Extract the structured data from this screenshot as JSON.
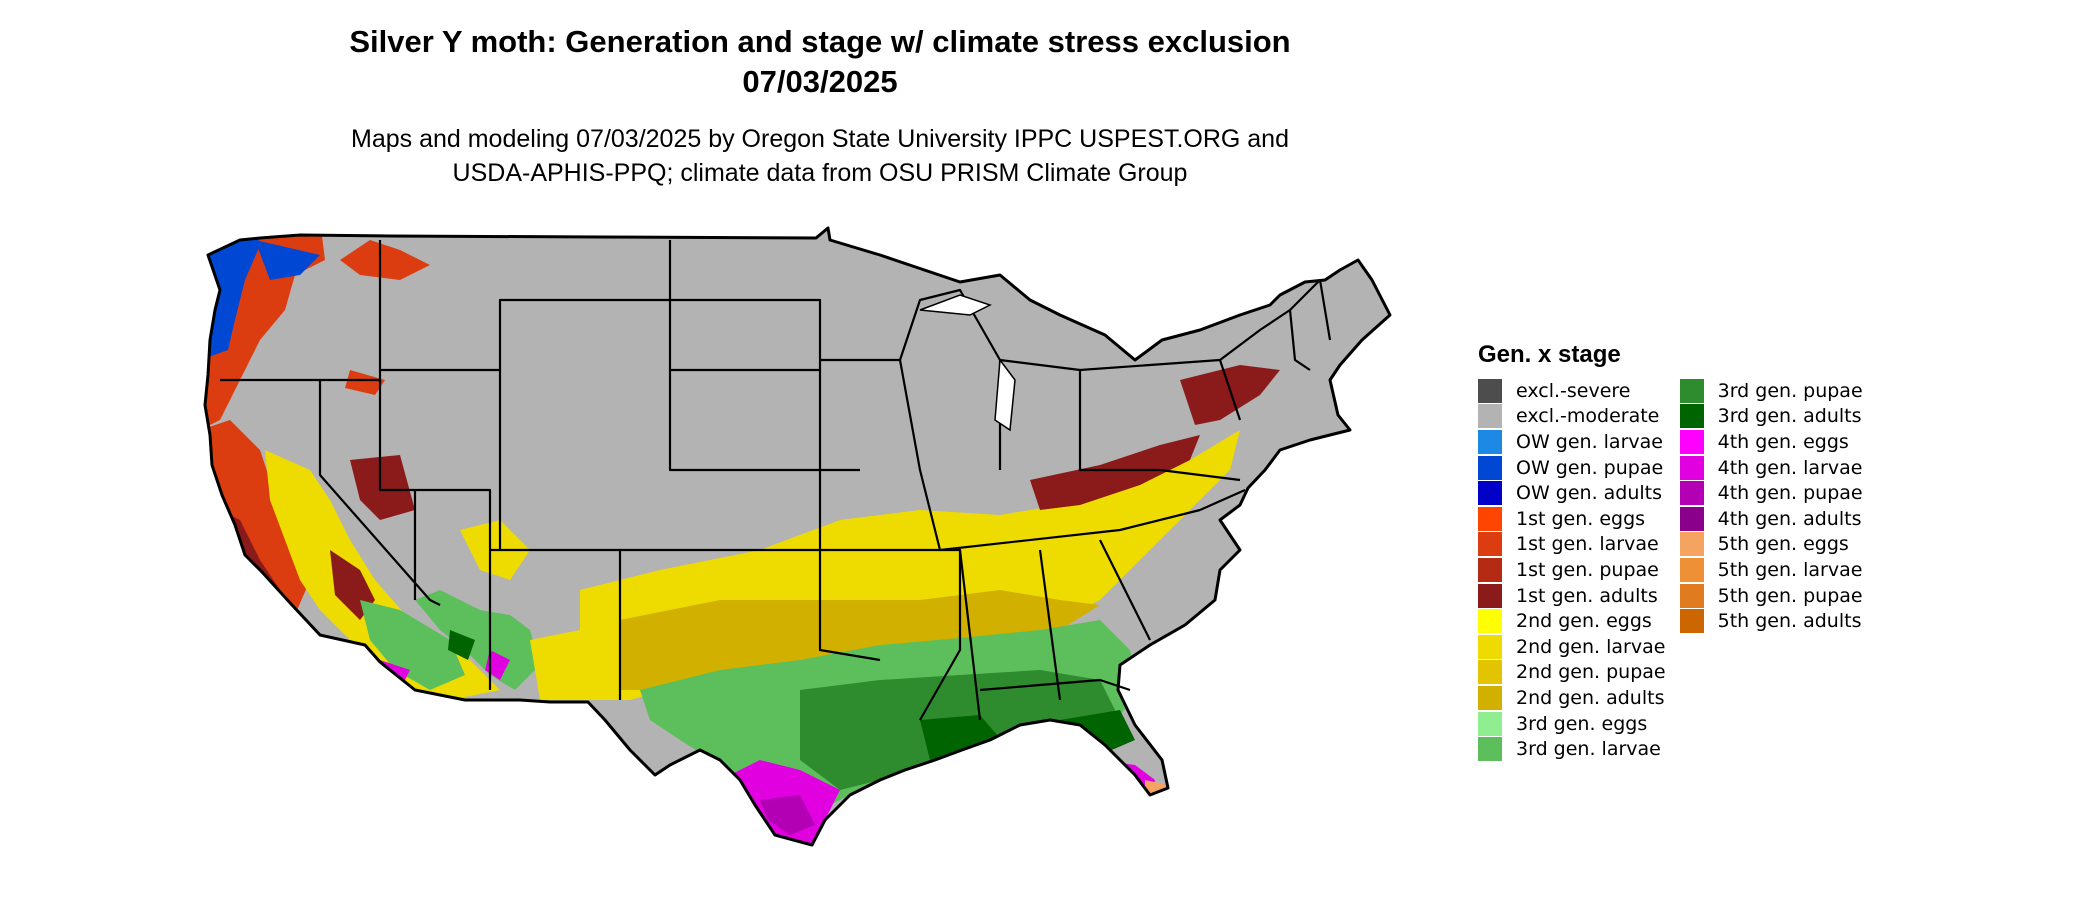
{
  "title_line1": "Silver Y moth: Generation and stage w/ climate stress exclusion",
  "title_line2": "07/03/2025",
  "subtitle_line1": "Maps and modeling 07/03/2025 by Oregon State University IPPC USPEST.ORG and",
  "subtitle_line2": "USDA-APHIS-PPQ; climate data from OSU PRISM Climate Group",
  "legend": {
    "title": "Gen. x stage",
    "items": [
      {
        "label": "excl.-severe",
        "color": "#4d4d4d"
      },
      {
        "label": "excl.-moderate",
        "color": "#b3b3b3"
      },
      {
        "label": "OW gen. larvae",
        "color": "#1e88e5"
      },
      {
        "label": "OW gen. pupae",
        "color": "#0047d4"
      },
      {
        "label": "OW gen. adults",
        "color": "#0000c8"
      },
      {
        "label": "1st gen. eggs",
        "color": "#ff4500"
      },
      {
        "label": "1st gen. larvae",
        "color": "#dc3d10"
      },
      {
        "label": "1st gen. pupae",
        "color": "#b52a12"
      },
      {
        "label": "1st gen. adults",
        "color": "#8b1a1a"
      },
      {
        "label": "2nd gen. eggs",
        "color": "#ffff00"
      },
      {
        "label": "2nd gen. larvae",
        "color": "#eedc00"
      },
      {
        "label": "2nd gen. pupae",
        "color": "#e2c500"
      },
      {
        "label": "2nd gen. adults",
        "color": "#d2b000"
      },
      {
        "label": "3rd gen. eggs",
        "color": "#90ee90"
      },
      {
        "label": "3rd gen. larvae",
        "color": "#5cbf5c"
      },
      {
        "label": "3rd gen. pupae",
        "color": "#2e8b2e"
      },
      {
        "label": "3rd gen. adults",
        "color": "#006400"
      },
      {
        "label": "4th gen. eggs",
        "color": "#ff00ff"
      },
      {
        "label": "4th gen. larvae",
        "color": "#e000e0"
      },
      {
        "label": "4th gen. pupae",
        "color": "#b400b4"
      },
      {
        "label": "4th gen. adults",
        "color": "#8b008b"
      },
      {
        "label": "5th gen. eggs",
        "color": "#f4a460"
      },
      {
        "label": "5th gen. larvae",
        "color": "#ee9035"
      },
      {
        "label": "5th gen. pupae",
        "color": "#e07b20"
      },
      {
        "label": "5th gen. adults",
        "color": "#cc6600"
      }
    ]
  },
  "map": {
    "background_color": "#b3b3b3",
    "border_color": "#000000",
    "region_zones": [
      {
        "zone": "excl.-moderate",
        "color": "#b3b3b3"
      },
      {
        "zone": "OW gen. pupae",
        "color": "#0047d4"
      },
      {
        "zone": "1st gen. larvae",
        "color": "#dc3d10"
      },
      {
        "zone": "1st gen. adults",
        "color": "#8b1a1a"
      },
      {
        "zone": "2nd gen. larvae",
        "color": "#eedc00"
      },
      {
        "zone": "2nd gen. adults",
        "color": "#d2b000"
      },
      {
        "zone": "3rd gen. larvae",
        "color": "#5cbf5c"
      },
      {
        "zone": "3rd gen. pupae",
        "color": "#2e8b2e"
      },
      {
        "zone": "3rd gen. adults",
        "color": "#006400"
      },
      {
        "zone": "4th gen. larvae",
        "color": "#e000e0"
      },
      {
        "zone": "4th gen. pupae",
        "color": "#b400b4"
      },
      {
        "zone": "5th gen. eggs",
        "color": "#f4a460"
      }
    ]
  }
}
